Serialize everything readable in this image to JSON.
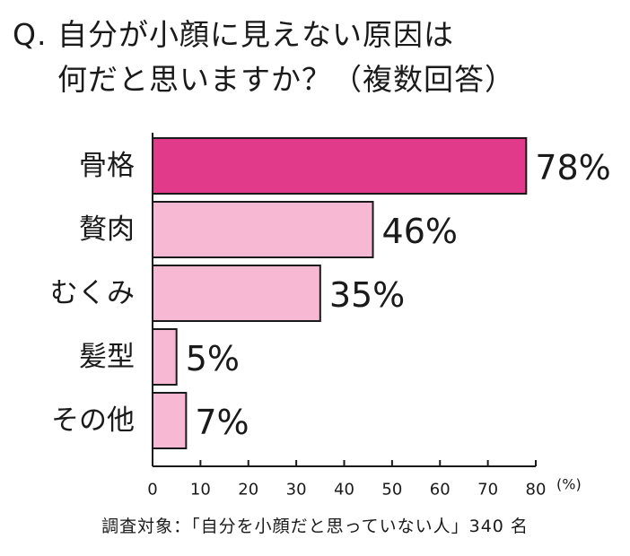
{
  "title_line1": "Q. 自分が小顔に見えない原因は",
  "title_line2": "何だと思いますか？（複数回答）",
  "chart_data": {
    "type": "bar",
    "orientation": "horizontal",
    "categories": [
      "骨格",
      "贅肉",
      "むくみ",
      "髪型",
      "その他"
    ],
    "values": [
      78,
      46,
      35,
      5,
      7
    ],
    "value_labels": [
      "78%",
      "46%",
      "35%",
      "5%",
      "7%"
    ],
    "xlim": [
      0,
      80
    ],
    "xticks": [
      0,
      10,
      20,
      30,
      40,
      50,
      60,
      70,
      80
    ],
    "x_unit": "(%)",
    "bar_colors": [
      "#e23a8a",
      "#f6b8d2",
      "#f6b8d2",
      "#f6b8d2",
      "#f6b8d2"
    ],
    "grid": false
  },
  "footnote": "調査対象：「自分を小顔だと思っていない人」340 名"
}
